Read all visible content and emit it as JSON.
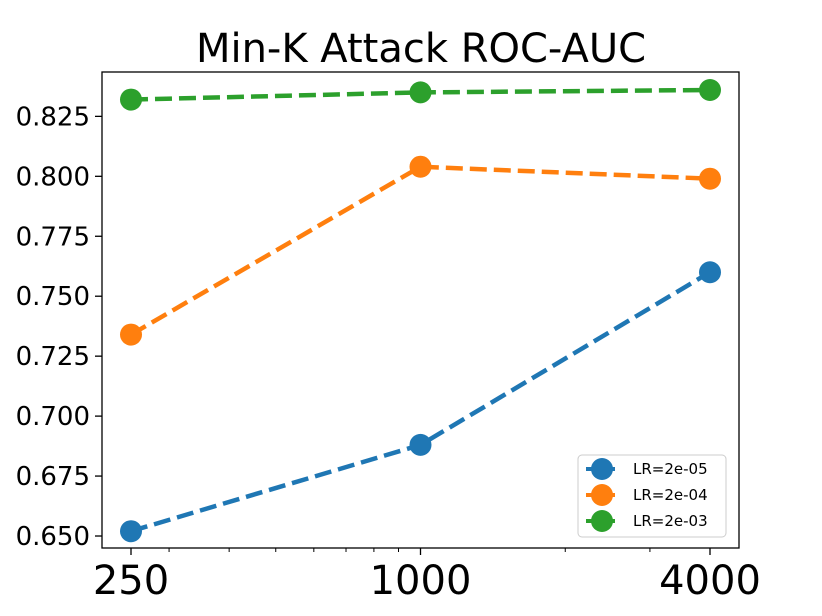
{
  "chart_data": {
    "type": "line",
    "title": "Min-K Attack ROC-AUC",
    "xlabel": "",
    "ylabel": "",
    "x": [
      250,
      1000,
      4000
    ],
    "x_scale": "log",
    "xticks": [
      "250",
      "1000",
      "4000"
    ],
    "ylim": [
      0.645,
      0.8435
    ],
    "yticks": [
      "0.650",
      "0.675",
      "0.700",
      "0.725",
      "0.750",
      "0.775",
      "0.800",
      "0.825"
    ],
    "grid": false,
    "legend_position": "lower-right",
    "series": [
      {
        "name": "LR=2e-05",
        "color": "#1f77b4",
        "values": [
          0.652,
          0.688,
          0.76
        ]
      },
      {
        "name": "LR=2e-04",
        "color": "#ff7f0e",
        "values": [
          0.734,
          0.804,
          0.799
        ]
      },
      {
        "name": "LR=2e-03",
        "color": "#2ca02c",
        "values": [
          0.832,
          0.835,
          0.836
        ]
      }
    ]
  }
}
